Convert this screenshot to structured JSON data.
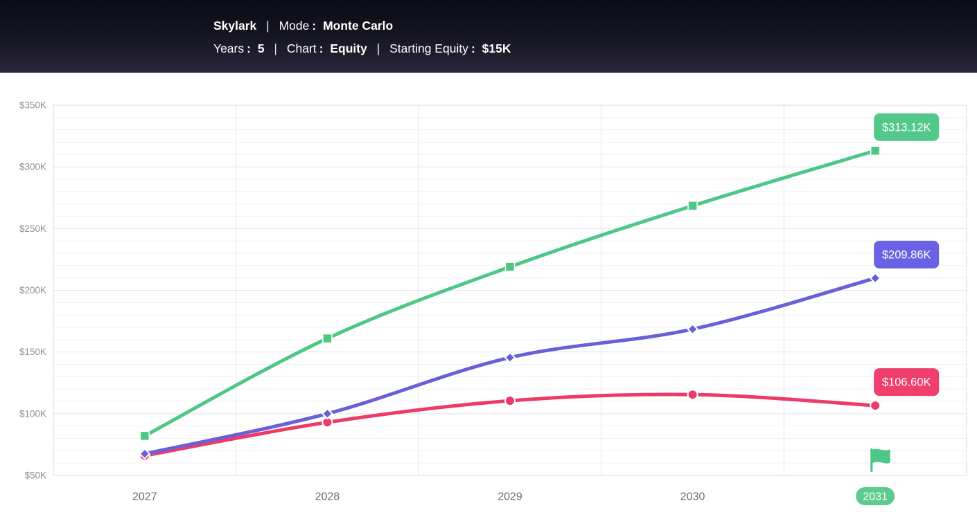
{
  "header": {
    "app_name": "Skylark",
    "separator": "|",
    "colon": ":",
    "mode_label": "Mode",
    "mode_value": "Monte Carlo",
    "years_label": "Years",
    "years_value": "5",
    "chart_type_label": "Chart",
    "chart_type_value": "Equity",
    "starting_equity_label": "Starting Equity",
    "starting_equity_value": "$15K"
  },
  "icons": {
    "goal_flag": "flag-icon"
  },
  "chart_data": {
    "type": "line",
    "title": "",
    "xlabel": "",
    "ylabel": "",
    "categories": [
      "2027",
      "2028",
      "2029",
      "2030",
      "2031"
    ],
    "series": [
      {
        "name": "green-upper",
        "marker": "square",
        "color": "#4dc785",
        "badge_color": "#52c88b",
        "values": [
          82,
          161,
          219,
          268.5,
          313.12
        ],
        "end_label": "$313.12K"
      },
      {
        "name": "purple-median",
        "marker": "diamond",
        "color": "#695fd9",
        "badge_color": "#6a62e4",
        "values": [
          67.5,
          100,
          145.5,
          168.5,
          209.86
        ],
        "end_label": "$209.86K"
      },
      {
        "name": "red-lower",
        "marker": "circle",
        "color": "#ee3a68",
        "badge_color": "#f03e6d",
        "values": [
          66,
          93,
          110.5,
          115.5,
          106.6
        ],
        "end_label": "$106.60K"
      }
    ],
    "ylim": [
      50,
      350
    ],
    "y_major_step": 50,
    "y_minor_step": 10,
    "y_tick_labels": [
      "$50K",
      "$100K",
      "$150K",
      "$200K",
      "$250K",
      "$300K",
      "$350K"
    ],
    "grid": true,
    "legend": "none",
    "highlighted_category": "2031",
    "highlight_pill_color": "#5dcb8e",
    "flag_category": "2031",
    "axis_text_color": "#8e8e93",
    "x_axis_text_color": "#6d6d73"
  }
}
